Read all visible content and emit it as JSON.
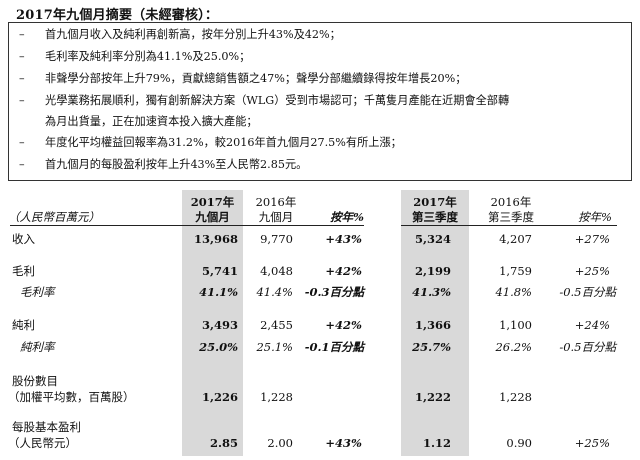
{
  "title": "2017年九個月摘要（未經審核）：",
  "bullets": [
    {
      "dash": "–",
      "text": "首九個月收入及純利再創新高，按年分別上升43%及42%；"
    },
    {
      "dash": "–",
      "text": "毛利率及純利率分別為41.1%及25.0%；"
    },
    {
      "dash": "–",
      "text": "非聲學分部按年上升79%，貢獻總銷售額之47%；聲學分部繼續錄得按年增長20%；"
    },
    {
      "dash": "–",
      "text": "光學業務拓展順利，獨有創新解決方案（WLG）受到市場認可；千萬隻月產能在近期會全部轉",
      "cont": "為月出貨量，正在加速資本投入擴大產能；"
    },
    {
      "dash": "–",
      "text": "年度化平均權益回報率為31.2%，較2016年首九個月27.5%有所上漲；"
    },
    {
      "dash": "–",
      "text": "首九個月的每股盈利按年上升43%至人民幣2.85元。"
    }
  ],
  "table": {
    "unit": "（人民幣百萬元）",
    "headers": {
      "c1a": "2017年",
      "c1b": "九個月",
      "c2a": "2016年",
      "c2b": "九個月",
      "c3": "按年%",
      "c4a": "2017年",
      "c4b": "第三季度",
      "c5a": "2016年",
      "c5b": "第三季度",
      "c6": "按年%"
    },
    "rows": [
      {
        "label": "收入",
        "v1": "13,968",
        "v2": "9,770",
        "v3": "+43%",
        "v4": "5,324",
        "v5": "4,207",
        "v6": "+27%"
      },
      {
        "label": "毛利",
        "v1": "5,741",
        "v2": "4,048",
        "v3": "+42%",
        "v4": "2,199",
        "v5": "1,759",
        "v6": "+25%"
      },
      {
        "label": "毛利率",
        "v1": "41.1%",
        "v2": "41.4%",
        "v3": "-0.3百分點",
        "v4": "41.3%",
        "v5": "41.8%",
        "v6": "-0.5百分點"
      },
      {
        "label": "純利",
        "v1": "3,493",
        "v2": "2,455",
        "v3": "+42%",
        "v4": "1,366",
        "v5": "1,100",
        "v6": "+24%"
      },
      {
        "label": "純利率",
        "v1": "25.0%",
        "v2": "25.1%",
        "v3": "-0.1百分點",
        "v4": "25.7%",
        "v5": "26.2%",
        "v6": "-0.5百分點"
      },
      {
        "label": "股份數目",
        "label2": "（加權平均數，百萬股）",
        "v1": "1,226",
        "v2": "1,228",
        "v4": "1,222",
        "v5": "1,228"
      },
      {
        "label": "每股基本盈利",
        "label2": "（人民幣元）",
        "v1": "2.85",
        "v2": "2.00",
        "v3": "+43%",
        "v4": "1.12",
        "v5": "0.90",
        "v6": "+25%"
      }
    ]
  }
}
